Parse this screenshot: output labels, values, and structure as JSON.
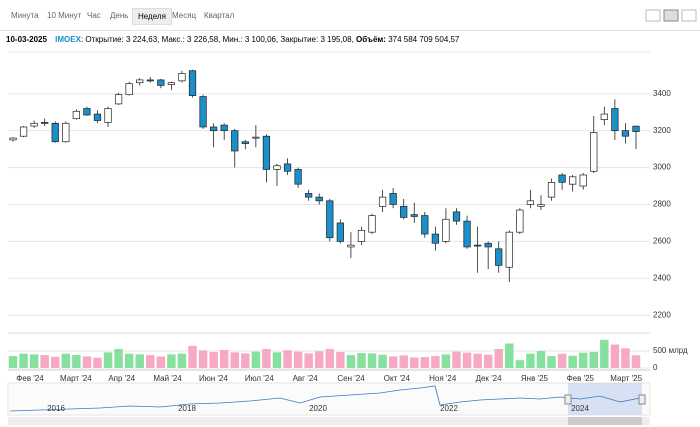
{
  "toolbar": {
    "tabs": [
      "Минута",
      "10 Минут",
      "Час",
      "День",
      "Неделя",
      "Месяц",
      "Квартал"
    ],
    "active": 4
  },
  "info": {
    "date": "10-03-2025",
    "ticker": "IMOEX",
    "ohlc_text": ": Открытие: 3 224,63, Макс.: 3 226,58, Мин.: 3 100,06, Закрытие: 3 195,08,",
    "volume_label": "Объём:",
    "volume_text": "374 584 709 504,57"
  },
  "chart_data": {
    "type": "candlestick",
    "open": [
      3150,
      3170,
      3225,
      3245,
      3240,
      3140,
      3265,
      3320,
      3290,
      3245,
      3345,
      3395,
      3460,
      3475,
      3475,
      3450,
      3470,
      3525,
      3385,
      3220,
      3230,
      3200,
      3140,
      3160,
      3170,
      2990,
      3020,
      2990,
      2860,
      2840,
      2820,
      2700,
      2570,
      2600,
      2650,
      2790,
      2860,
      2790,
      2745,
      2740,
      2640,
      2600,
      2760,
      2710,
      2580,
      2590,
      2560,
      2460,
      2650,
      2800,
      2790,
      2840,
      2960,
      2910,
      2900,
      2980,
      3260,
      3320,
      3200,
      3224.63
    ],
    "high": [
      3165,
      3225,
      3255,
      3265,
      3250,
      3250,
      3315,
      3330,
      3310,
      3330,
      3405,
      3465,
      3485,
      3490,
      3480,
      3465,
      3525,
      3530,
      3395,
      3240,
      3240,
      3210,
      3150,
      3230,
      3180,
      3020,
      3050,
      3000,
      2880,
      2860,
      2830,
      2720,
      2650,
      2680,
      2750,
      2880,
      2890,
      2830,
      2810,
      2760,
      2680,
      2780,
      2780,
      2740,
      2680,
      2600,
      2600,
      2660,
      2780,
      2880,
      2850,
      2940,
      2970,
      2960,
      2970,
      3280,
      3330,
      3370,
      3240,
      3226.58
    ],
    "low": [
      3140,
      3165,
      3215,
      3225,
      3135,
      3135,
      3260,
      3280,
      3240,
      3220,
      3340,
      3390,
      3445,
      3460,
      3430,
      3420,
      3460,
      3380,
      3210,
      3110,
      3150,
      3000,
      3100,
      3110,
      2920,
      2900,
      2960,
      2890,
      2820,
      2800,
      2600,
      2590,
      2510,
      2580,
      2640,
      2760,
      2780,
      2720,
      2700,
      2620,
      2550,
      2590,
      2690,
      2560,
      2430,
      2450,
      2430,
      2380,
      2640,
      2780,
      2770,
      2820,
      2880,
      2870,
      2880,
      2970,
      3230,
      3150,
      3130,
      3100.06
    ],
    "close": [
      3160,
      3220,
      3240,
      3240,
      3140,
      3240,
      3305,
      3285,
      3255,
      3320,
      3395,
      3455,
      3475,
      3470,
      3445,
      3460,
      3510,
      3390,
      3220,
      3200,
      3200,
      3090,
      3130,
      3165,
      2990,
      3010,
      2980,
      2910,
      2840,
      2820,
      2620,
      2600,
      2580,
      2660,
      2740,
      2840,
      2800,
      2730,
      2735,
      2640,
      2590,
      2720,
      2710,
      2570,
      2575,
      2570,
      2470,
      2650,
      2770,
      2820,
      2800,
      2920,
      2920,
      2950,
      2960,
      3190,
      3290,
      3200,
      3170,
      3195.08
    ],
    "volume": [
      350,
      420,
      400,
      380,
      330,
      420,
      380,
      340,
      300,
      460,
      560,
      420,
      400,
      380,
      340,
      400,
      420,
      650,
      520,
      470,
      530,
      460,
      430,
      480,
      560,
      460,
      520,
      480,
      430,
      490,
      560,
      470,
      380,
      440,
      430,
      390,
      340,
      370,
      310,
      320,
      350,
      400,
      480,
      450,
      420,
      390,
      560,
      720,
      230,
      420,
      500,
      350,
      420,
      360,
      450,
      470,
      830,
      690,
      580,
      374.58
    ],
    "up_color": "#ffffff",
    "down_color": "#1a8fc9",
    "volume_up_color": "#86e09e",
    "volume_down_color": "#f7a8c2",
    "ylim": [
      2120,
      3610
    ],
    "yticks": [
      2200,
      2400,
      2600,
      2800,
      3000,
      3200,
      3400
    ],
    "volume_ylim": [
      0,
      970
    ],
    "volume_yticks": [
      0,
      {
        "value": 500,
        "label": "500 млрд"
      }
    ],
    "month_labels": [
      "Фев '24",
      "Март '24",
      "Апр '24",
      "Май '24",
      "Июн '24",
      "Июл '24",
      "Авг '24",
      "Сен '24",
      "Окт '24",
      "Ноя '24",
      "Дек '24",
      "Янв '25",
      "Фев '25",
      "Март '25"
    ],
    "navigator_years": [
      "2016",
      "2018",
      "2020",
      "2022",
      "2024"
    ],
    "grid": true
  }
}
